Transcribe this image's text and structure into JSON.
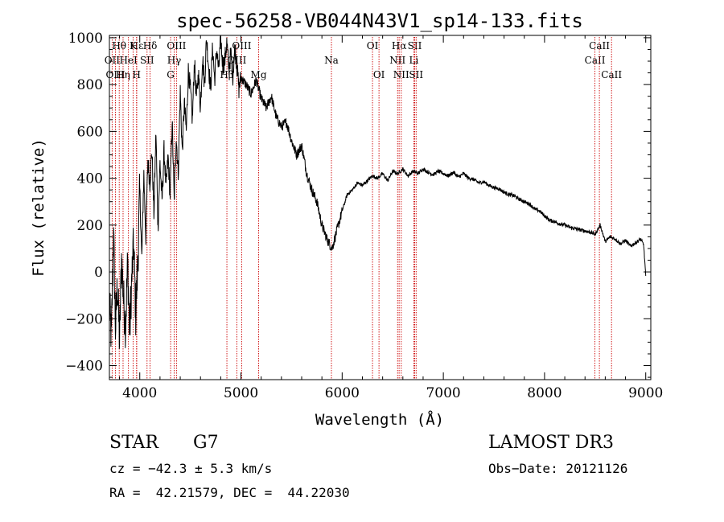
{
  "chart_data": {
    "type": "line",
    "title": "spec-56258-VB044N43V1_sp14-133.fits",
    "xlabel": "Wavelength (Å)",
    "ylabel": "Flux (relative)",
    "xlim": [
      3700,
      9050
    ],
    "ylim": [
      -460,
      1010
    ],
    "x_ticks": [
      4000,
      5000,
      6000,
      7000,
      8000,
      9000
    ],
    "y_ticks": [
      -400,
      -200,
      0,
      200,
      400,
      600,
      800,
      1000
    ],
    "grid": false,
    "line_color": "#000000",
    "marker_color": "#cc0000",
    "spectrum": {
      "x": [
        3700,
        3720,
        3740,
        3760,
        3780,
        3800,
        3820,
        3840,
        3860,
        3880,
        3900,
        3920,
        3940,
        3960,
        3980,
        4000,
        4020,
        4040,
        4060,
        4080,
        4100,
        4120,
        4140,
        4160,
        4180,
        4200,
        4220,
        4240,
        4260,
        4280,
        4300,
        4320,
        4340,
        4360,
        4380,
        4400,
        4420,
        4440,
        4460,
        4480,
        4500,
        4520,
        4540,
        4560,
        4580,
        4600,
        4620,
        4640,
        4660,
        4680,
        4700,
        4720,
        4740,
        4760,
        4780,
        4800,
        4820,
        4840,
        4860,
        4880,
        4900,
        4920,
        4940,
        4960,
        4980,
        5000,
        5050,
        5100,
        5150,
        5200,
        5250,
        5300,
        5350,
        5400,
        5450,
        5500,
        5550,
        5600,
        5650,
        5700,
        5750,
        5800,
        5850,
        5900,
        5950,
        6000,
        6050,
        6100,
        6150,
        6200,
        6250,
        6300,
        6350,
        6400,
        6450,
        6500,
        6550,
        6600,
        6650,
        6700,
        6750,
        6800,
        6850,
        6900,
        6950,
        7000,
        7050,
        7100,
        7150,
        7200,
        7250,
        7300,
        7350,
        7400,
        7450,
        7500,
        7550,
        7600,
        7650,
        7700,
        7750,
        7800,
        7850,
        7900,
        7950,
        8000,
        8050,
        8100,
        8150,
        8200,
        8250,
        8300,
        8350,
        8400,
        8450,
        8500,
        8550,
        8600,
        8650,
        8700,
        8750,
        8800,
        8850,
        8900,
        8950,
        8980,
        9000
      ],
      "y": [
        -150,
        -280,
        180,
        -240,
        -50,
        -300,
        60,
        -120,
        -230,
        40,
        -260,
        -40,
        120,
        -180,
        30,
        350,
        60,
        420,
        150,
        480,
        380,
        520,
        250,
        600,
        180,
        470,
        300,
        520,
        360,
        490,
        330,
        650,
        300,
        580,
        420,
        770,
        510,
        720,
        600,
        860,
        780,
        650,
        900,
        740,
        850,
        700,
        920,
        800,
        1000,
        880,
        780,
        960,
        820,
        950,
        860,
        1000,
        880,
        900,
        980,
        870,
        930,
        840,
        960,
        880,
        780,
        830,
        800,
        760,
        820,
        740,
        700,
        750,
        660,
        620,
        640,
        560,
        500,
        540,
        420,
        350,
        300,
        200,
        140,
        100,
        180,
        260,
        330,
        350,
        380,
        370,
        390,
        410,
        400,
        420,
        390,
        430,
        420,
        440,
        410,
        430,
        420,
        440,
        425,
        415,
        430,
        420,
        410,
        425,
        405,
        420,
        400,
        395,
        380,
        385,
        370,
        360,
        355,
        340,
        330,
        325,
        310,
        300,
        290,
        270,
        260,
        240,
        220,
        215,
        205,
        200,
        190,
        185,
        180,
        175,
        170,
        160,
        200,
        130,
        150,
        140,
        120,
        135,
        110,
        125,
        140,
        115,
        -20
      ]
    },
    "line_markers": [
      {
        "name": "Hε",
        "wavelength": 3970,
        "row": 0
      },
      {
        "name": "OII",
        "wavelength": 3727,
        "row": 1
      },
      {
        "name": "OIII",
        "wavelength": 3760,
        "row": 2
      },
      {
        "name": "Hθ",
        "wavelength": 3797,
        "row": 0
      },
      {
        "name": "Hη",
        "wavelength": 3835,
        "row": 2
      },
      {
        "name": "HeI",
        "wavelength": 3888,
        "row": 1
      },
      {
        "name": "K",
        "wavelength": 3934,
        "row": 0
      },
      {
        "name": "H",
        "wavelength": 3968,
        "row": 2
      },
      {
        "name": "SII",
        "wavelength": 4072,
        "row": 1
      },
      {
        "name": "Hδ",
        "wavelength": 4102,
        "row": 0
      },
      {
        "name": "G",
        "wavelength": 4305,
        "row": 2
      },
      {
        "name": "Hγ",
        "wavelength": 4340,
        "row": 1
      },
      {
        "name": "OIII",
        "wavelength": 4363,
        "row": 0
      },
      {
        "name": "Hβ",
        "wavelength": 4861,
        "row": 2
      },
      {
        "name": "OIII",
        "wavelength": 4959,
        "row": 1
      },
      {
        "name": "OIII",
        "wavelength": 5007,
        "row": 0
      },
      {
        "name": "Mg",
        "wavelength": 5175,
        "row": 2
      },
      {
        "name": "Na",
        "wavelength": 5894,
        "row": 1
      },
      {
        "name": "OI",
        "wavelength": 6300,
        "row": 0
      },
      {
        "name": "OI",
        "wavelength": 6364,
        "row": 2
      },
      {
        "name": "NII",
        "wavelength": 6548,
        "row": 1
      },
      {
        "name": "Hα",
        "wavelength": 6563,
        "row": 0
      },
      {
        "name": "NII",
        "wavelength": 6584,
        "row": 2
      },
      {
        "name": "SII",
        "wavelength": 6717,
        "row": 0
      },
      {
        "name": "Li",
        "wavelength": 6708,
        "row": 1
      },
      {
        "name": "SII",
        "wavelength": 6731,
        "row": 2
      },
      {
        "name": "CaII",
        "wavelength": 8498,
        "row": 1
      },
      {
        "name": "CaII",
        "wavelength": 8542,
        "row": 0
      },
      {
        "name": "CaII",
        "wavelength": 8662,
        "row": 2
      }
    ]
  },
  "footer": {
    "object_class": "STAR",
    "subclass": "G7",
    "redshift": "cz = −42.3 ± 5.3 km/s",
    "coordinates": "RA =  42.21579, DEC =  44.22030",
    "survey": "LAMOST DR3",
    "obs_date": "Obs−Date: 20121126"
  }
}
